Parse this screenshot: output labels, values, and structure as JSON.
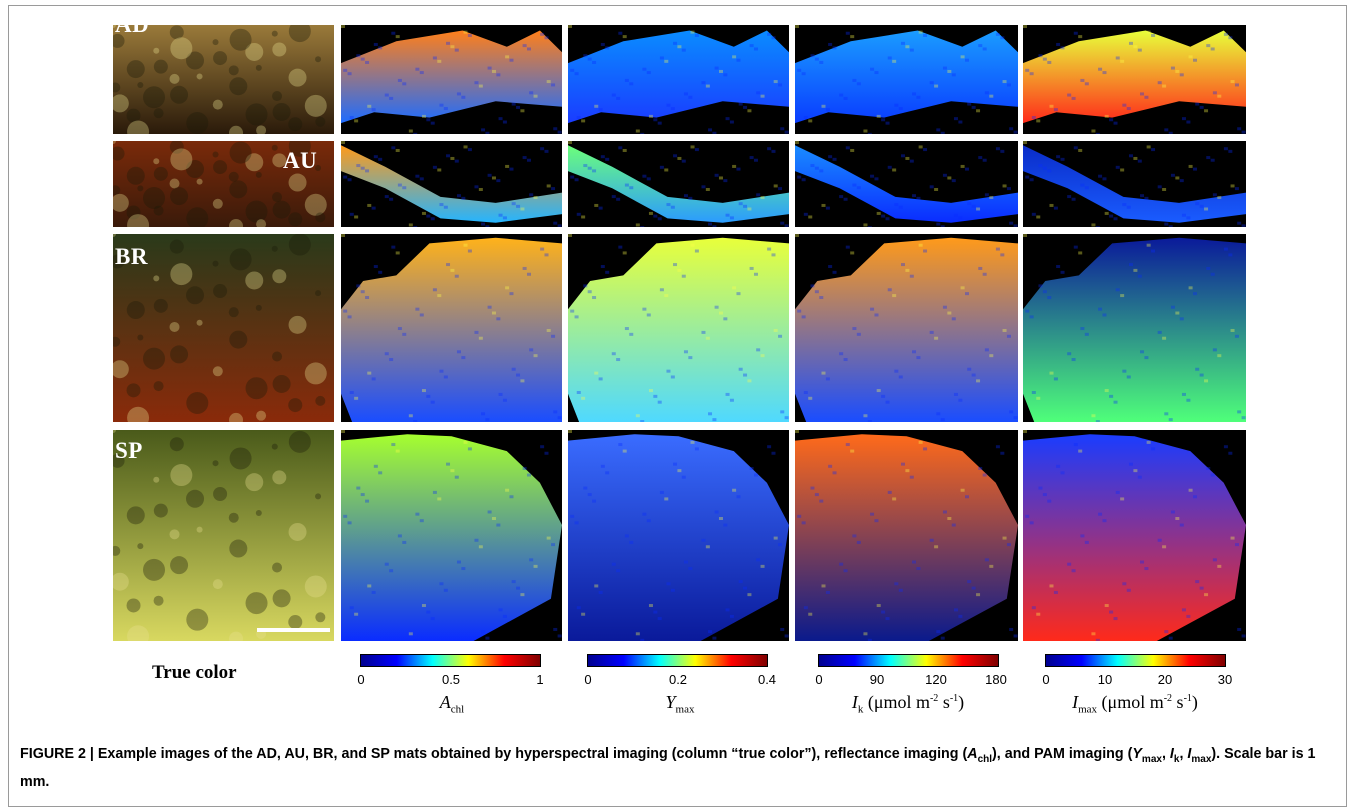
{
  "row_labels": [
    "AD",
    "AU",
    "BR",
    "SP"
  ],
  "column_labels": {
    "true_color": "True color"
  },
  "colorbars": [
    {
      "name": "A_chl",
      "ticks": [
        "0",
        "0.5",
        "1"
      ],
      "label_main": "A",
      "label_sub": "chl",
      "label_rest": ""
    },
    {
      "name": "Y_max",
      "ticks": [
        "0",
        "0.2",
        "0.4"
      ],
      "label_main": "Y",
      "label_sub": "max",
      "label_rest": ""
    },
    {
      "name": "I_k",
      "ticks": [
        "0",
        "90",
        "120",
        "180"
      ],
      "label_main": "I",
      "label_sub": "k",
      "label_rest": " (μmol m",
      "label_sup": "-2",
      "label_rest2": " s",
      "label_sup2": "-1",
      "label_end": ")"
    },
    {
      "name": "I_max",
      "ticks": [
        "0",
        "10",
        "20",
        "30"
      ],
      "label_main": "I",
      "label_sub": "max",
      "label_rest": " (μmol m",
      "label_sup": "-2",
      "label_rest2": " s",
      "label_sup2": "-1",
      "label_end": ")"
    }
  ],
  "caption": {
    "lead": "FIGURE 2 | Example images of the AD, AU, BR, and SP mats obtained by hyperspectral imaging (column “true color”), reflectance imaging (",
    "a_main": "A",
    "a_sub": "chl",
    "mid": "), and PAM imaging (",
    "y_main": "Y",
    "y_sub": "max",
    "sep1": ", ",
    "ik_main": "I",
    "ik_sub": "k",
    "sep2": ", ",
    "imax_main": "I",
    "imax_sub": "max",
    "tail": "). Scale bar is 1 mm."
  },
  "colors": {
    "jet": [
      "#00008f",
      "#0000ff",
      "#00ffff",
      "#ffff00",
      "#ff0000",
      "#800000"
    ],
    "background": "#000000",
    "frame": "#9a9a9a"
  }
}
